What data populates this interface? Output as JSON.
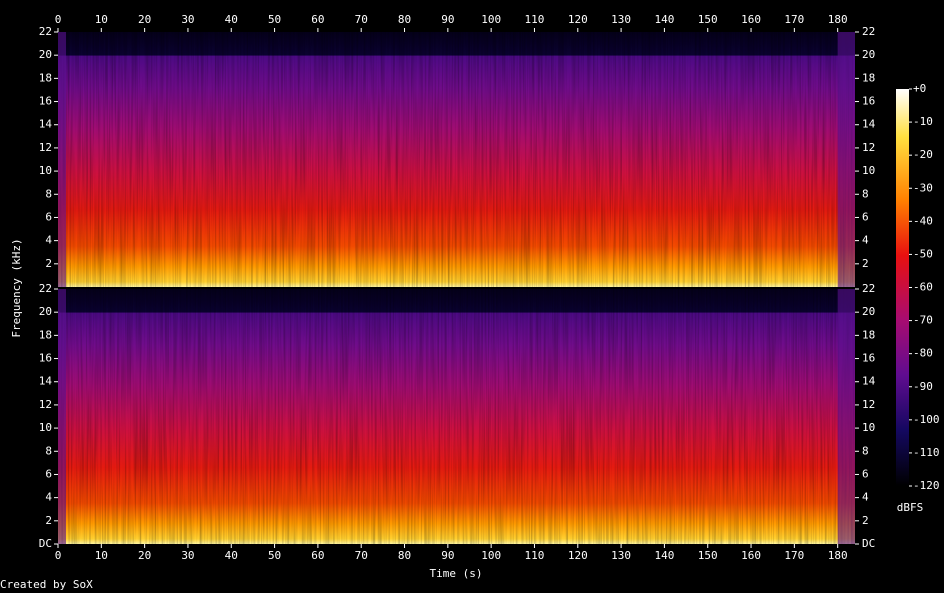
{
  "chart_data": {
    "type": "spectrogram",
    "xlabel": "Time (s)",
    "ylabel": "Frequency (kHz)",
    "xlim": [
      0,
      184
    ],
    "xticks": [
      0,
      10,
      20,
      30,
      40,
      50,
      60,
      70,
      80,
      90,
      100,
      110,
      120,
      130,
      140,
      150,
      160,
      170,
      180
    ],
    "ylim": [
      0,
      22
    ],
    "panels": [
      {
        "yticks": [
          2,
          4,
          6,
          8,
          10,
          12,
          14,
          16,
          18,
          20,
          22
        ]
      },
      {
        "yticks": [
          {
            "value": 0,
            "label": "DC"
          },
          2,
          4,
          6,
          8,
          10,
          12,
          14,
          16,
          18,
          20,
          22
        ]
      }
    ],
    "colorbar": {
      "label": "dBFS",
      "lim": [
        -120,
        0
      ],
      "ticks": [
        {
          "value": 0,
          "label": "+0"
        },
        -10,
        -20,
        -30,
        -40,
        -50,
        -60,
        -70,
        -80,
        -90,
        -100,
        -110,
        -120
      ]
    },
    "footer": "Created by SoX"
  }
}
